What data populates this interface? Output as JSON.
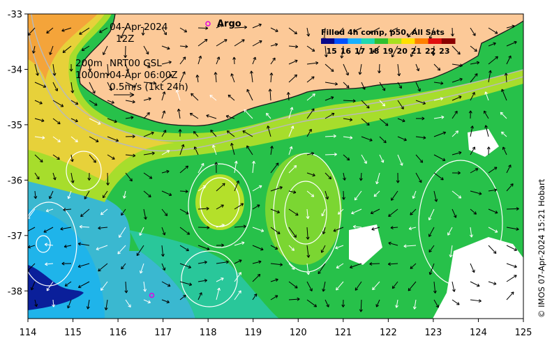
{
  "map": {
    "lon_range": [
      114,
      125
    ],
    "lat_range": [
      -38.5,
      -33
    ],
    "x_ticks": [
      "114",
      "115",
      "116",
      "117",
      "118",
      "119",
      "120",
      "121",
      "122",
      "123",
      "124",
      "125"
    ],
    "y_ticks": [
      "-33",
      "-34",
      "-35",
      "-36",
      "-37",
      "-38"
    ],
    "ocean_color": "#22c55e",
    "land_color": "#fcc998"
  },
  "annotations": {
    "date": "04-Apr-2024",
    "time": "12Z",
    "depth_line_1": "200m",
    "depth_line_2": "1000m",
    "product": "NRT00 GSL",
    "product_time": "04-Apr 06:00Z",
    "vector_scale": "0.5m/s (1kt 24h)"
  },
  "argo": {
    "label": "Argo",
    "color": "#e000e0",
    "float_lon": 116.75,
    "float_lat": -38.08
  },
  "colorbar": {
    "title": "Filled 4h comp, p50, All Sats",
    "labels": [
      "15",
      "16",
      "17",
      "18",
      "19",
      "20",
      "21",
      "22",
      "23"
    ],
    "colors": [
      "#08088a",
      "#0050ff",
      "#18b0ff",
      "#20d8b0",
      "#30c030",
      "#a8e020",
      "#ffe000",
      "#ff8000",
      "#e01010",
      "#8a0000"
    ]
  },
  "credit": "© IMOS 07-Apr-2024 15:21 Hobart"
}
